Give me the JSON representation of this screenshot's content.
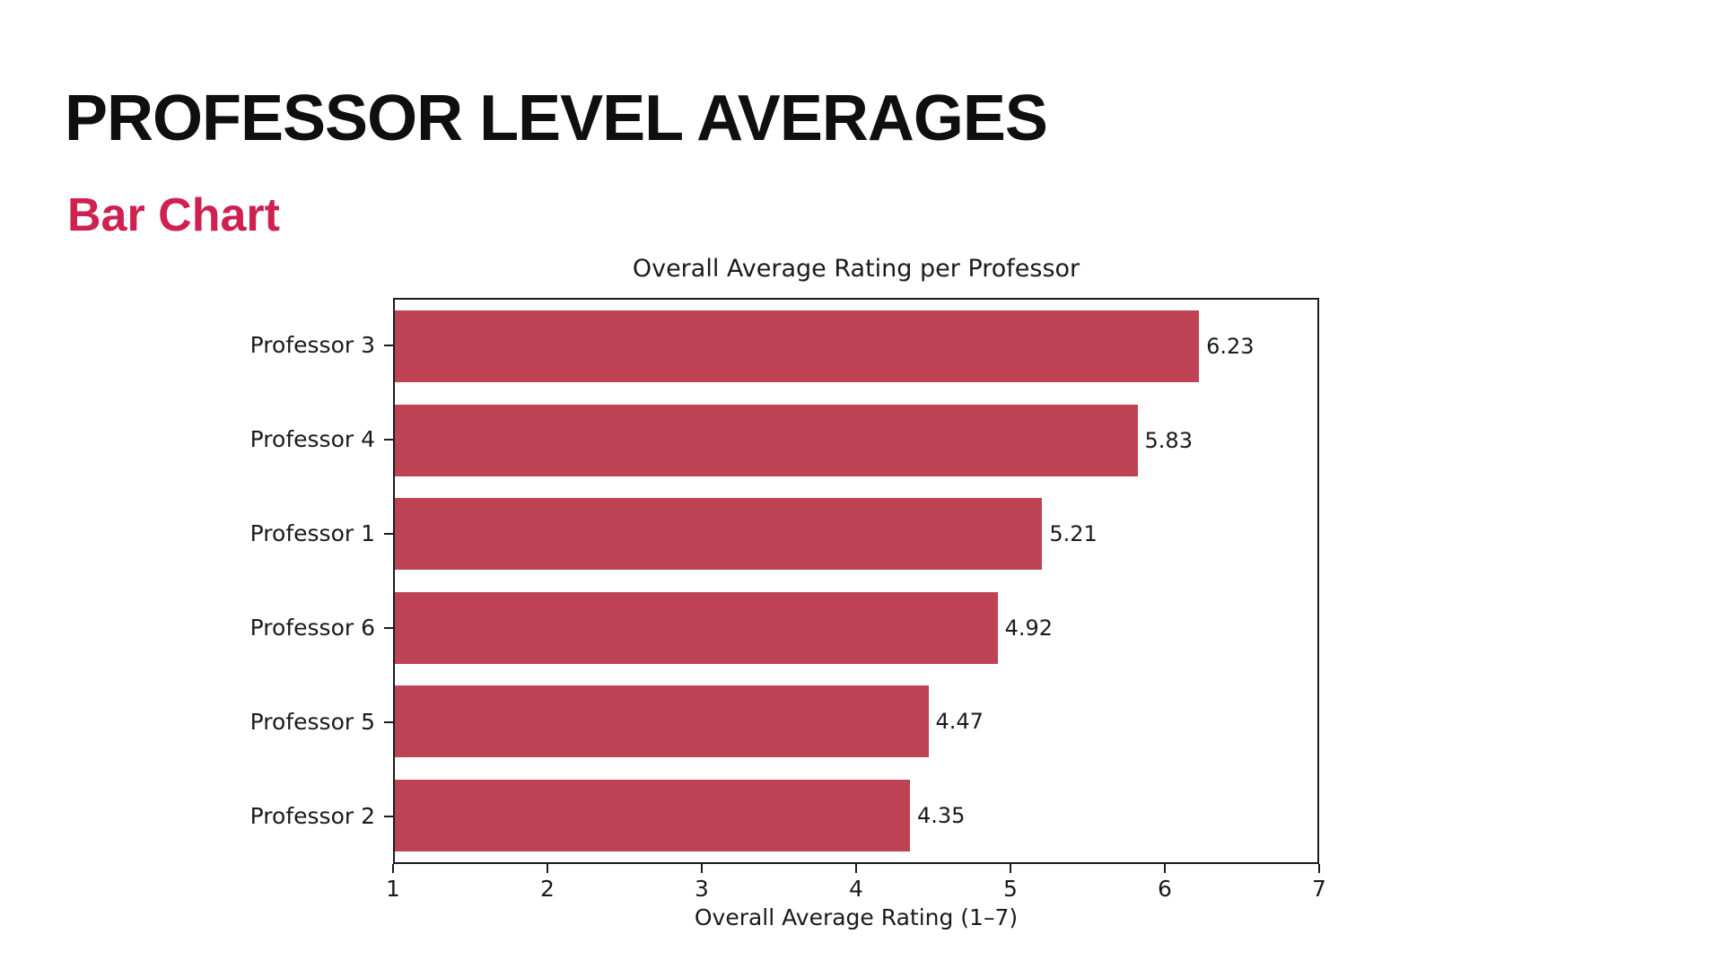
{
  "page": {
    "title": "PROFESSOR LEVEL AVERAGES",
    "subtitle": "Bar Chart"
  },
  "colors": {
    "title_text": "#0F0F0F",
    "subtitle_accent": "#CF2150",
    "bar": "#BD4355",
    "chart_text": "#1A1A1A",
    "background": "#FFFFFF"
  },
  "chart_data": {
    "type": "bar",
    "orientation": "horizontal",
    "title": "Overall Average Rating per Professor",
    "xlabel": "Overall Average Rating (1–7)",
    "xlim": [
      1,
      7
    ],
    "xticks": [
      1,
      2,
      3,
      4,
      5,
      6,
      7
    ],
    "grid": false,
    "categories": [
      "Professor 3",
      "Professor 4",
      "Professor 1",
      "Professor 6",
      "Professor 5",
      "Professor 2"
    ],
    "values": [
      6.23,
      5.83,
      5.21,
      4.92,
      4.47,
      4.35
    ],
    "value_labels": [
      "6.23",
      "5.83",
      "5.21",
      "4.92",
      "4.47",
      "4.35"
    ],
    "bar_color": "#BD4355"
  }
}
